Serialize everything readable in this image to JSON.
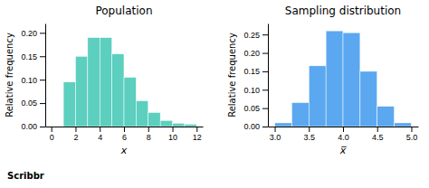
{
  "chart_data": [
    {
      "type": "histogram",
      "title": "Population",
      "bins": [
        0,
        1,
        2,
        3,
        4,
        5,
        6,
        7,
        8,
        9,
        10,
        11,
        12
      ],
      "values": [
        0.0,
        0.095,
        0.15,
        0.19,
        0.19,
        0.155,
        0.105,
        0.055,
        0.03,
        0.013,
        0.007,
        0.005
      ],
      "color": "#5dcfbf",
      "xlim": [
        -0.5,
        12.5
      ],
      "ylim": [
        0,
        0.22
      ],
      "xticks": [
        0,
        2,
        4,
        6,
        8,
        10,
        12
      ],
      "yticks": [
        {
          "value": 0,
          "label": "0.00"
        },
        0.05,
        {
          "value": 0.1,
          "label": "0.10"
        },
        0.15,
        {
          "value": 0.2,
          "label": "0.20"
        }
      ],
      "x_label": "x",
      "y_label": "Relative frequency",
      "grid": false,
      "annotations": [
        "Scribbr"
      ]
    },
    {
      "type": "histogram",
      "title": "Sampling distribution",
      "bins": [
        3.0,
        3.25,
        3.5,
        3.75,
        4.0,
        4.25,
        4.5,
        4.75,
        5.0
      ],
      "values": [
        0.01,
        0.065,
        0.165,
        0.26,
        0.255,
        0.15,
        0.055,
        0.01
      ],
      "color": "#5ba8f0",
      "xlim": [
        2.9,
        5.1
      ],
      "ylim": [
        0,
        0.28
      ],
      "xticks": [
        {
          "value": 3,
          "label": "3.0"
        },
        3.5,
        {
          "value": 4,
          "label": "4.0"
        },
        4.5,
        {
          "value": 5,
          "label": "5.0"
        }
      ],
      "yticks": [
        {
          "value": 0,
          "label": "0.00"
        },
        0.05,
        {
          "value": 0.1,
          "label": "0.10"
        },
        0.15,
        {
          "value": 0.2,
          "label": "0.20"
        },
        0.25
      ],
      "x_label": "x̅",
      "y_label": "Relative frequency",
      "grid": false
    }
  ]
}
